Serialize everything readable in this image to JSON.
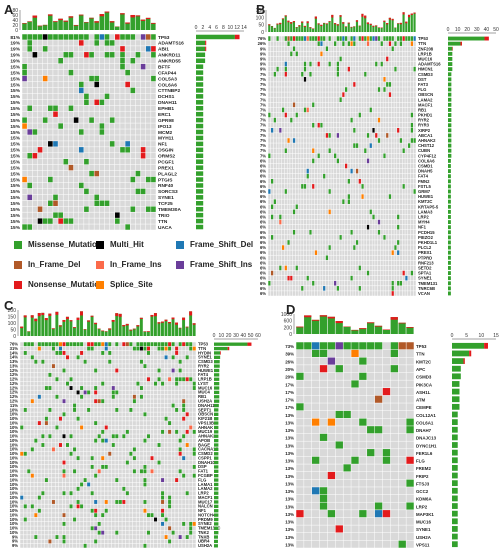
{
  "colors": {
    "Missense_Mutation": "#33a02c",
    "Nonsense_Mutation": "#e31a1c",
    "Frame_Shift_Del": "#1f78b4",
    "Frame_Shift_Ins": "#6a3d9a",
    "In_Frame_Del": "#b15928",
    "In_Frame_Ins": "#fb6a4a",
    "Splice_Site": "#ff7f00",
    "Multi_Hit": "#000000",
    "empty": "#d9d9d9"
  },
  "legend": [
    {
      "key": "Missense_Mutation",
      "label": "Missense_Mutation"
    },
    {
      "key": "Multi_Hit",
      "label": "Multi_Hit"
    },
    {
      "key": "Frame_Shift_Del",
      "label": "Frame_Shift_Del"
    },
    {
      "key": "In_Frame_Del",
      "label": "In_Frame_Del"
    },
    {
      "key": "In_Frame_Ins",
      "label": "In_Frame_Ins"
    },
    {
      "key": "Frame_Shift_Ins",
      "label": "Frame_Shift_Ins"
    },
    {
      "key": "Nonsense_Mutation",
      "label": "Nonsense_Mutation"
    },
    {
      "key": "Splice_Site",
      "label": "Splice_Site"
    }
  ],
  "panels": [
    {
      "letter": "A",
      "samples": 26,
      "top_axis": [
        "80",
        "60",
        "40",
        "20",
        "0"
      ],
      "right_axis": [
        "0",
        "2",
        "4",
        "6",
        "8",
        "10",
        "12",
        "14"
      ],
      "genes": [
        "TP53",
        "ADAMTS16",
        "ABI1",
        "ANKRD11",
        "ANKRD55",
        "BFTF",
        "CFAP44",
        "COL5A3",
        "COL6A6",
        "CTTNBP2",
        "DCHS1",
        "DNAH11",
        "EPHB1",
        "ERC1",
        "GPR98",
        "IPO13",
        "MCM2",
        "MYH11",
        "NF1",
        "OSGIN",
        "ORMS2",
        "PCGF1",
        "PREX1",
        "PLAGL2",
        "PTGIS",
        "RNF40",
        "SORCS3",
        "SYNE1",
        "TCF25",
        "TMEM30A",
        "TRIO",
        "TTN",
        "UACA"
      ],
      "pcts": [
        "81%",
        "19%",
        "19%",
        "19%",
        "19%",
        "15%",
        "15%",
        "15%",
        "15%",
        "15%",
        "15%",
        "15%",
        "15%",
        "15%",
        "15%",
        "15%",
        "15%",
        "15%",
        "15%",
        "15%",
        "15%",
        "15%",
        "15%",
        "15%",
        "15%",
        "15%",
        "15%",
        "15%",
        "15%",
        "15%",
        "15%",
        "15%",
        "15%"
      ]
    },
    {
      "letter": "B",
      "samples": 54,
      "top_axis": [
        "150",
        "100",
        "50",
        "0"
      ],
      "right_axis": [
        "0",
        "10",
        "20",
        "30",
        "40",
        "50"
      ],
      "genes": [
        "TP53",
        "TTN",
        "ZNF208",
        "LRP1B",
        "MUC16",
        "ADAMTS16",
        "HMCN1",
        "CSMD3",
        "DST",
        "FAT3",
        "FLG",
        "OBSCN",
        "LAMA2",
        "MACF1",
        "RB1",
        "PKHD1",
        "RYR2",
        "RYR3",
        "XIRP2",
        "ABCA1",
        "AHNAK2",
        "CHST12",
        "CUBN",
        "CYP4F12",
        "COL6A6",
        "CSMD1",
        "DNAH5",
        "FAT4",
        "FMN2",
        "FSTL5",
        "GRM7",
        "HUWE1",
        "KMT2C",
        "KRTAP5-5",
        "LAMA3",
        "LRP2",
        "MYH4",
        "NF1",
        "PCDH15",
        "PIEZO2",
        "PKHD1L1",
        "PLCL2",
        "PREX1",
        "PTPRD",
        "RNF213",
        "SETD2",
        "SPTA1",
        "SYNE1",
        "TMEM131",
        "TNRC6B",
        "VCAN"
      ],
      "pcts": [
        "76%",
        "26%",
        "9%",
        "9%",
        "9%",
        "9%",
        "9%",
        "7%",
        "7%",
        "7%",
        "7%",
        "7%",
        "7%",
        "7%",
        "7%",
        "7%",
        "7%",
        "7%",
        "7%",
        "7%",
        "7%",
        "7%",
        "7%",
        "7%",
        "6%",
        "6%",
        "6%",
        "6%",
        "6%",
        "6%",
        "6%",
        "6%",
        "6%",
        "6%",
        "6%",
        "6%",
        "6%",
        "6%",
        "6%",
        "6%",
        "6%",
        "6%",
        "6%",
        "6%",
        "6%",
        "6%",
        "6%",
        "6%",
        "6%",
        "6%",
        "6%"
      ]
    },
    {
      "letter": "C",
      "samples": 50,
      "top_axis": [
        "200",
        "150",
        "100",
        "50",
        "0"
      ],
      "right_axis": [
        "0",
        "10",
        "20",
        "30",
        "40",
        "50",
        "60"
      ],
      "genes": [
        "TP53",
        "TTN",
        "HYDIN",
        "SYNE1",
        "CSMD3",
        "RYR2",
        "HUWE1",
        "FAT4",
        "LRP1B",
        "LYST",
        "MUC16",
        "MUC4",
        "RB1",
        "USH2A",
        "DNAH11",
        "SEPT1",
        "OBSCN",
        "KIF21B",
        "VPS13B",
        "AHNAK",
        "MUC19",
        "AHNAK2",
        "APOB",
        "BAGE",
        "CACNA1E",
        "CSMD2",
        "CSPP1",
        "DNAH10",
        "DSP",
        "FAT1",
        "FCGBP",
        "FLG",
        "LAMA1",
        "LAMA2",
        "LRP2",
        "MACF1",
        "MUC17",
        "NALCN",
        "NF1",
        "NOTCH4",
        "PRDM9",
        "SYNE2",
        "TMEM132C",
        "TNK2",
        "TNXB",
        "UBR4",
        "USH2A"
      ],
      "pcts": [
        "76%",
        "31%",
        "14%",
        "14%",
        "13%",
        "13%",
        "12%",
        "12%",
        "12%",
        "12%",
        "12%",
        "12%",
        "12%",
        "12%",
        "11%",
        "10%",
        "10%",
        "10%",
        "10%",
        "10%",
        "10%",
        "10%",
        "10%",
        "10%",
        "10%",
        "10%",
        "10%",
        "10%",
        "10%",
        "10%",
        "10%",
        "10%",
        "10%",
        "10%",
        "10%",
        "10%",
        "10%",
        "10%",
        "10%",
        "10%",
        "10%",
        "10%",
        "10%",
        "10%",
        "9%",
        "9%",
        "9%"
      ]
    },
    {
      "letter": "D",
      "samples": 15,
      "top_axis": [
        "1000",
        "600",
        "200",
        "0"
      ],
      "right_axis": [
        "0",
        "5",
        "10",
        "15"
      ],
      "genes": [
        "TP53",
        "TTN",
        "KMT2C",
        "APC",
        "CSMD3",
        "PIK3CA",
        "ASH1L",
        "ATM",
        "CEMPE",
        "COL12A1",
        "COL6A1",
        "DNAH7",
        "DNAJC13",
        "DYNC1H1",
        "FER1L6",
        "FLG",
        "FREM2",
        "FRIP2",
        "FTSJ3",
        "GCC2",
        "KDM6A",
        "LRP2",
        "MAP3K1",
        "MUC16",
        "SYNE1",
        "USH2A",
        "VPS11"
      ],
      "pcts": [
        "73%",
        "39%",
        "26%",
        "20%",
        "20%",
        "17%",
        "17%",
        "17%",
        "17%",
        "13%",
        "13%",
        "13%",
        "13%",
        "13%",
        "13%",
        "13%",
        "13%",
        "13%",
        "13%",
        "13%",
        "13%",
        "13%",
        "13%",
        "13%",
        "13%",
        "13%",
        "13%"
      ]
    }
  ]
}
